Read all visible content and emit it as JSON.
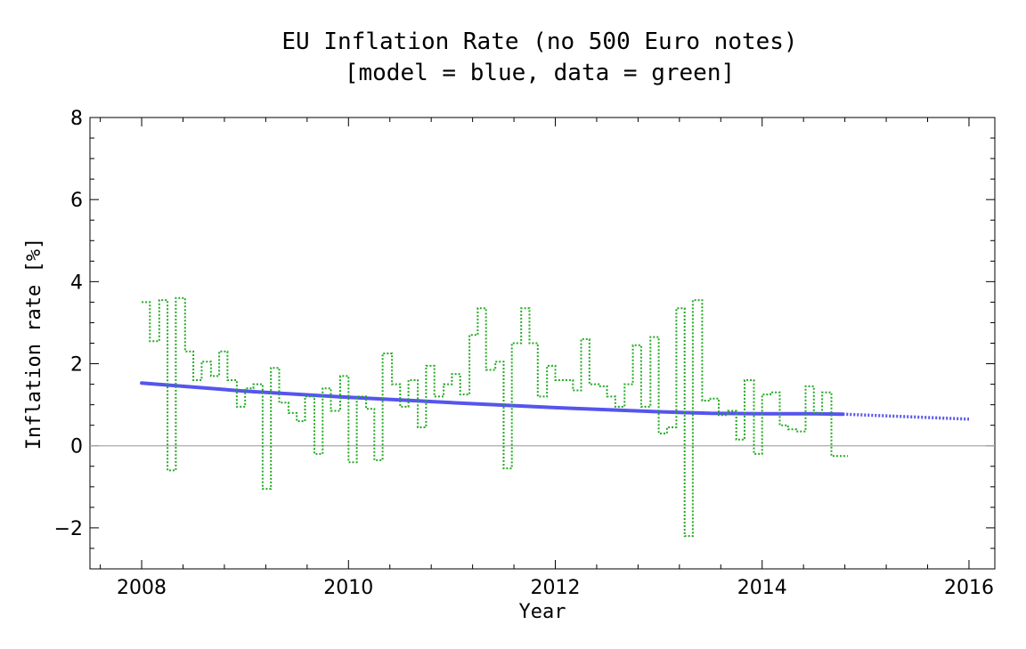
{
  "chart_data": {
    "type": "line",
    "title": "EU Inflation Rate (no 500 Euro notes)",
    "subtitle": "[model = blue, data = green]",
    "xlabel": "Year",
    "ylabel": "Inflation rate [%]",
    "xlim": [
      2007.5,
      2016.25
    ],
    "ylim": [
      -3,
      8
    ],
    "x_ticks": [
      2008,
      2010,
      2012,
      2014,
      2016
    ],
    "y_ticks": [
      -2,
      0,
      2,
      4,
      6,
      8
    ],
    "grid": false,
    "legend": "none",
    "colors": {
      "model": "#5555ee",
      "data": "#22aa22",
      "zero_line": "#aaaaaa"
    },
    "series": [
      {
        "id": "model",
        "style": "solid",
        "x": [
          2008.0,
          2009.0,
          2010.0,
          2011.0,
          2012.0,
          2013.0,
          2013.5,
          2014.0,
          2014.5,
          2014.78
        ],
        "y": [
          1.53,
          1.33,
          1.18,
          1.05,
          0.93,
          0.83,
          0.79,
          0.78,
          0.78,
          0.77
        ]
      },
      {
        "id": "model-projection",
        "style": "dotted",
        "x": [
          2014.78,
          2015.0,
          2015.5,
          2016.0
        ],
        "y": [
          0.77,
          0.75,
          0.7,
          0.65
        ]
      },
      {
        "id": "data",
        "style": "dotted-step",
        "x": [
          2008.0,
          2008.08,
          2008.17,
          2008.25,
          2008.33,
          2008.42,
          2008.5,
          2008.58,
          2008.67,
          2008.75,
          2008.83,
          2008.92,
          2009.0,
          2009.08,
          2009.17,
          2009.25,
          2009.33,
          2009.42,
          2009.5,
          2009.58,
          2009.67,
          2009.75,
          2009.83,
          2009.92,
          2010.0,
          2010.08,
          2010.17,
          2010.25,
          2010.33,
          2010.42,
          2010.5,
          2010.58,
          2010.67,
          2010.75,
          2010.83,
          2010.92,
          2011.0,
          2011.08,
          2011.17,
          2011.25,
          2011.33,
          2011.42,
          2011.5,
          2011.58,
          2011.67,
          2011.75,
          2011.83,
          2011.92,
          2012.0,
          2012.08,
          2012.17,
          2012.25,
          2012.33,
          2012.42,
          2012.5,
          2012.58,
          2012.67,
          2012.75,
          2012.83,
          2012.92,
          2013.0,
          2013.08,
          2013.17,
          2013.25,
          2013.33,
          2013.42,
          2013.5,
          2013.58,
          2013.67,
          2013.75,
          2013.83,
          2013.92,
          2014.0,
          2014.08,
          2014.17,
          2014.25,
          2014.33,
          2014.42,
          2014.5,
          2014.58,
          2014.67,
          2014.75
        ],
        "y": [
          3.5,
          2.55,
          3.55,
          -0.6,
          3.6,
          2.3,
          1.6,
          2.05,
          1.7,
          2.3,
          1.6,
          0.95,
          1.4,
          1.5,
          -1.05,
          1.9,
          1.05,
          0.8,
          0.6,
          1.2,
          -0.2,
          1.4,
          0.85,
          1.7,
          -0.4,
          1.2,
          0.9,
          -0.35,
          2.25,
          1.5,
          0.95,
          1.6,
          0.45,
          1.95,
          1.2,
          1.5,
          1.75,
          1.25,
          2.7,
          3.35,
          1.85,
          2.05,
          -0.55,
          2.5,
          3.35,
          2.5,
          1.2,
          1.95,
          1.6,
          1.6,
          1.35,
          2.6,
          1.5,
          1.45,
          1.2,
          0.95,
          1.5,
          2.45,
          0.95,
          2.65,
          0.3,
          0.45,
          3.35,
          -2.2,
          3.55,
          1.1,
          1.15,
          0.75,
          0.85,
          0.15,
          1.6,
          -0.2,
          1.25,
          1.3,
          0.5,
          0.4,
          0.35,
          1.45,
          0.8,
          1.3,
          -0.25,
          -0.25
        ]
      }
    ]
  }
}
